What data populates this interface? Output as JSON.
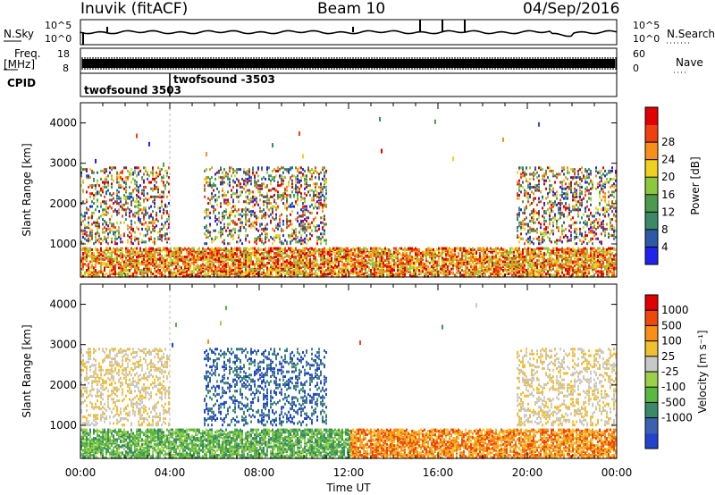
{
  "header": {
    "station": "Inuvik  (fitACF)",
    "beam": "Beam 10",
    "date": "04/Sep/2016"
  },
  "top_panels": {
    "nsky_label": "N.Sky",
    "nsky_ticks": [
      "10^5",
      "10^0"
    ],
    "nsearch_label": "N.Search",
    "nsearch_ticks": [
      "10^5",
      "10^0"
    ],
    "freq_label": "Freq.",
    "freq_unit": "[MHz]",
    "freq_ticks": [
      "18",
      "8"
    ],
    "nave_label": "Nave",
    "nave_ticks": [
      "60",
      "0"
    ],
    "cpid_label": "CPID",
    "cpid_entries": [
      {
        "label": "twofsound 3503",
        "start_hour": 0.0
      },
      {
        "label": "twofsound -3503",
        "start_hour": 4.0
      }
    ]
  },
  "chart_data": [
    {
      "type": "heatmap",
      "name": "power",
      "ylabel": "Slant Range [km]",
      "yticks": [
        1000,
        2000,
        3000,
        4000
      ],
      "ylim": [
        180,
        4500
      ],
      "xlim_hours": [
        0,
        24
      ],
      "colorbar": {
        "label": "Power [dB]",
        "ticks": [
          "4",
          "8",
          "12",
          "16",
          "20",
          "24",
          "28"
        ],
        "colors": [
          "#2222ee",
          "#2c5aa8",
          "#3a8a6a",
          "#4c9a4c",
          "#8cc83c",
          "#f0d020",
          "#f89018",
          "#f04010",
          "#e00000"
        ]
      }
    },
    {
      "type": "heatmap",
      "name": "velocity",
      "ylabel": "Slant Range [km]",
      "yticks": [
        1000,
        2000,
        3000,
        4000
      ],
      "ylim": [
        180,
        4500
      ],
      "xlim_hours": [
        0,
        24
      ],
      "xlabel": "Time UT",
      "xticks": [
        "00:00",
        "04:00",
        "08:00",
        "12:00",
        "16:00",
        "20:00",
        "00:00"
      ],
      "colorbar": {
        "label": "Velocity [m s⁻¹]",
        "ticks": [
          "1000",
          "500",
          "100",
          "25",
          "-25",
          "-100",
          "-500",
          "-1000"
        ],
        "colors": [
          "#2244cc",
          "#3a62b0",
          "#3a8a6a",
          "#58b840",
          "#9ad04a",
          "#c8c8c8",
          "#f0c030",
          "#f89018",
          "#f04808",
          "#e00000"
        ]
      }
    }
  ]
}
